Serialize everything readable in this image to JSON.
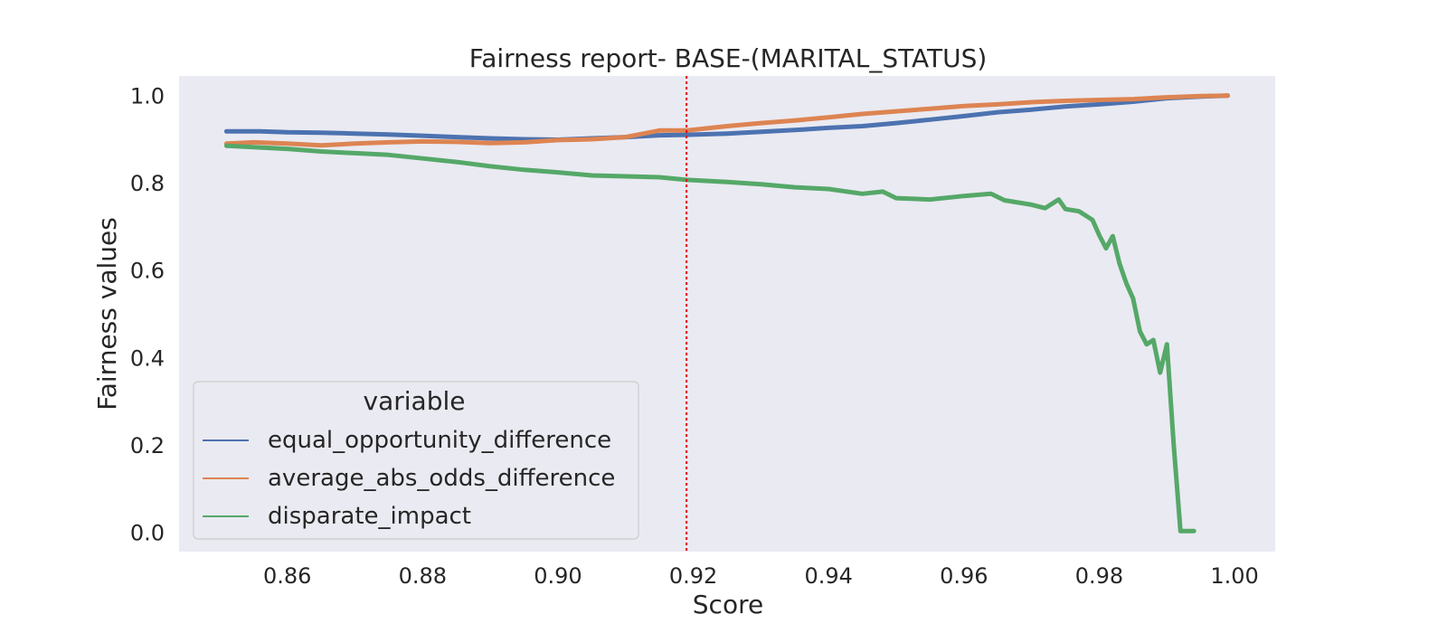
{
  "chart_data": {
    "type": "line",
    "title": "Fairness report- BASE-(MARITAL_STATUS)",
    "xlabel": "Score",
    "ylabel": "Fairness values",
    "xlim": [
      0.844,
      1.006
    ],
    "ylim": [
      -0.045,
      1.045
    ],
    "xticks": [
      "0.86",
      "0.88",
      "0.90",
      "0.92",
      "0.94",
      "0.96",
      "0.98",
      "1.00"
    ],
    "yticks": [
      "0.0",
      "0.2",
      "0.4",
      "0.6",
      "0.8",
      "1.0"
    ],
    "grid": false,
    "background": "#eaeaf2",
    "threshold_line": {
      "x": 0.919,
      "color": "#e8000b",
      "style": "dotted"
    },
    "legend": {
      "title": "variable",
      "placement": "lower-left"
    },
    "series": [
      {
        "name": "equal_opportunity_difference",
        "color": "#4c72b0",
        "points": [
          [
            0.851,
            0.918
          ],
          [
            0.856,
            0.918
          ],
          [
            0.86,
            0.916
          ],
          [
            0.865,
            0.915
          ],
          [
            0.87,
            0.913
          ],
          [
            0.875,
            0.911
          ],
          [
            0.88,
            0.908
          ],
          [
            0.885,
            0.905
          ],
          [
            0.89,
            0.902
          ],
          [
            0.895,
            0.9
          ],
          [
            0.9,
            0.899
          ],
          [
            0.905,
            0.902
          ],
          [
            0.91,
            0.905
          ],
          [
            0.915,
            0.909
          ],
          [
            0.919,
            0.91
          ],
          [
            0.925,
            0.913
          ],
          [
            0.93,
            0.917
          ],
          [
            0.935,
            0.921
          ],
          [
            0.94,
            0.926
          ],
          [
            0.945,
            0.93
          ],
          [
            0.95,
            0.937
          ],
          [
            0.955,
            0.945
          ],
          [
            0.96,
            0.953
          ],
          [
            0.965,
            0.962
          ],
          [
            0.97,
            0.968
          ],
          [
            0.975,
            0.975
          ],
          [
            0.98,
            0.98
          ],
          [
            0.985,
            0.986
          ],
          [
            0.99,
            0.994
          ],
          [
            0.995,
            0.998
          ],
          [
            0.999,
            1.0
          ]
        ]
      },
      {
        "name": "average_abs_odds_difference",
        "color": "#dd8452",
        "points": [
          [
            0.851,
            0.89
          ],
          [
            0.855,
            0.893
          ],
          [
            0.86,
            0.89
          ],
          [
            0.865,
            0.886
          ],
          [
            0.87,
            0.89
          ],
          [
            0.875,
            0.893
          ],
          [
            0.88,
            0.895
          ],
          [
            0.885,
            0.894
          ],
          [
            0.89,
            0.891
          ],
          [
            0.895,
            0.893
          ],
          [
            0.9,
            0.898
          ],
          [
            0.905,
            0.9
          ],
          [
            0.91,
            0.905
          ],
          [
            0.915,
            0.92
          ],
          [
            0.919,
            0.92
          ],
          [
            0.925,
            0.93
          ],
          [
            0.93,
            0.937
          ],
          [
            0.935,
            0.943
          ],
          [
            0.94,
            0.95
          ],
          [
            0.945,
            0.958
          ],
          [
            0.95,
            0.964
          ],
          [
            0.955,
            0.97
          ],
          [
            0.96,
            0.976
          ],
          [
            0.965,
            0.98
          ],
          [
            0.97,
            0.985
          ],
          [
            0.975,
            0.988
          ],
          [
            0.98,
            0.99
          ],
          [
            0.985,
            0.992
          ],
          [
            0.99,
            0.996
          ],
          [
            0.995,
            0.999
          ],
          [
            0.999,
            1.0
          ]
        ]
      },
      {
        "name": "disparate_impact",
        "color": "#55a868",
        "points": [
          [
            0.851,
            0.885
          ],
          [
            0.855,
            0.882
          ],
          [
            0.86,
            0.878
          ],
          [
            0.865,
            0.872
          ],
          [
            0.87,
            0.868
          ],
          [
            0.875,
            0.864
          ],
          [
            0.88,
            0.856
          ],
          [
            0.885,
            0.848
          ],
          [
            0.89,
            0.838
          ],
          [
            0.895,
            0.83
          ],
          [
            0.9,
            0.824
          ],
          [
            0.905,
            0.817
          ],
          [
            0.91,
            0.815
          ],
          [
            0.915,
            0.813
          ],
          [
            0.919,
            0.807
          ],
          [
            0.925,
            0.802
          ],
          [
            0.93,
            0.797
          ],
          [
            0.935,
            0.79
          ],
          [
            0.94,
            0.786
          ],
          [
            0.945,
            0.775
          ],
          [
            0.948,
            0.78
          ],
          [
            0.95,
            0.765
          ],
          [
            0.955,
            0.762
          ],
          [
            0.96,
            0.77
          ],
          [
            0.964,
            0.775
          ],
          [
            0.966,
            0.76
          ],
          [
            0.97,
            0.75
          ],
          [
            0.972,
            0.742
          ],
          [
            0.974,
            0.762
          ],
          [
            0.975,
            0.74
          ],
          [
            0.977,
            0.735
          ],
          [
            0.979,
            0.715
          ],
          [
            0.98,
            0.68
          ],
          [
            0.981,
            0.65
          ],
          [
            0.982,
            0.678
          ],
          [
            0.983,
            0.615
          ],
          [
            0.984,
            0.57
          ],
          [
            0.985,
            0.535
          ],
          [
            0.986,
            0.46
          ],
          [
            0.987,
            0.43
          ],
          [
            0.988,
            0.44
          ],
          [
            0.989,
            0.365
          ],
          [
            0.99,
            0.43
          ],
          [
            0.991,
            0.2
          ],
          [
            0.992,
            0.002
          ],
          [
            0.993,
            0.002
          ],
          [
            0.994,
            0.002
          ]
        ]
      }
    ]
  }
}
